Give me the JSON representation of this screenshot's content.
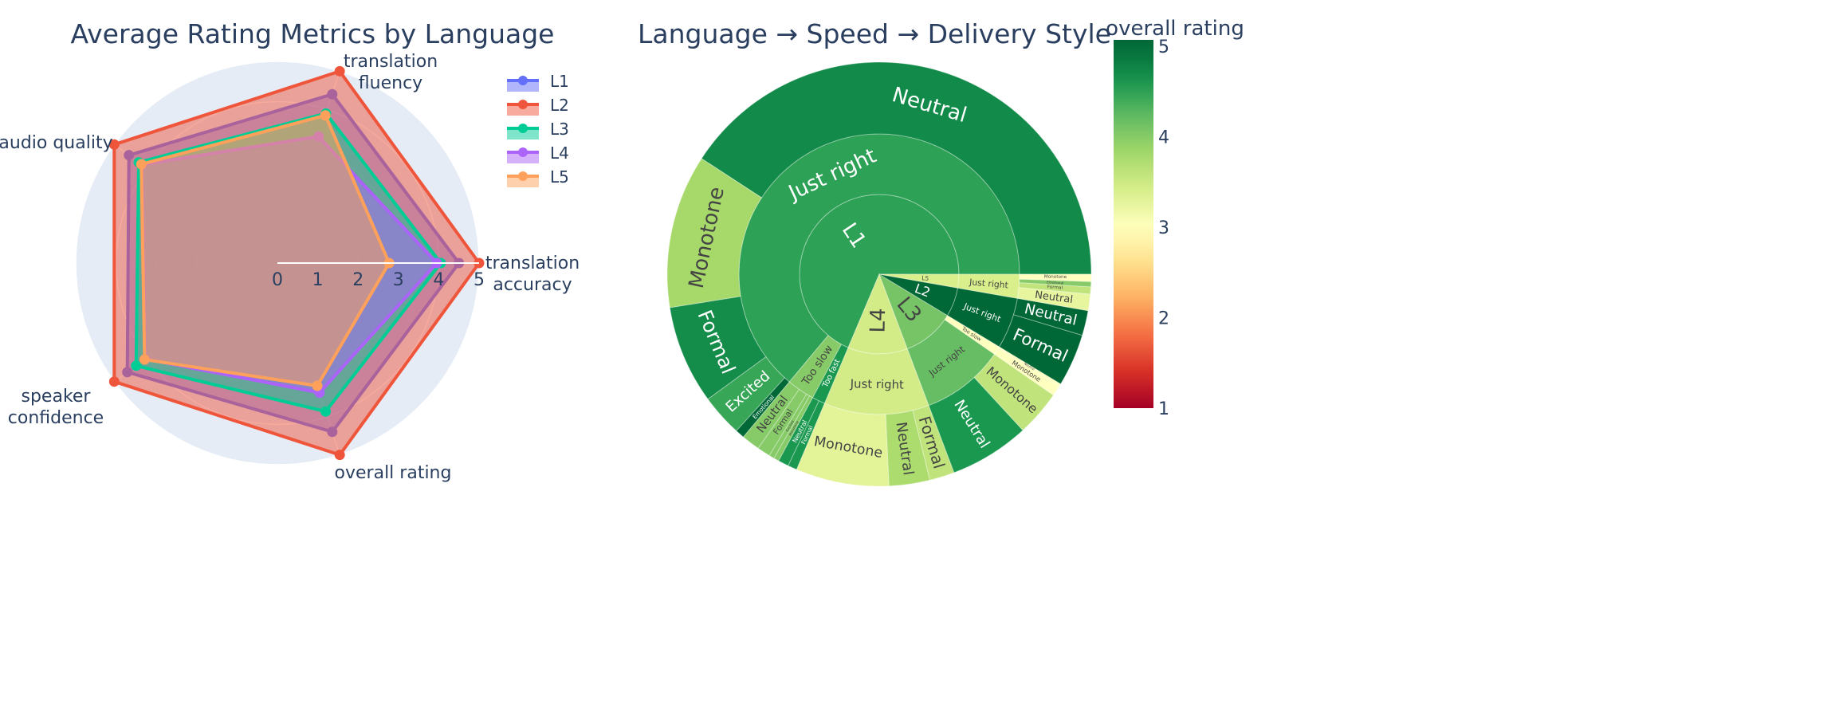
{
  "chart_data": [
    {
      "type": "radar",
      "title": "Average Rating Metrics by Language",
      "theta": [
        "translation accuracy",
        "translation fluency",
        "audio quality",
        "speaker confidence",
        "overall rating"
      ],
      "radial_range": [
        0,
        5
      ],
      "radial_ticks": [
        "0",
        "1",
        "2",
        "3",
        "4",
        "5"
      ],
      "legend_position": "top-right",
      "background": "#e5ecf6",
      "series": [
        {
          "name": "L1",
          "color": "#636efa",
          "values": [
            4.5,
            4.4,
            4.55,
            4.6,
            4.4
          ]
        },
        {
          "name": "L2",
          "color": "#ef553b",
          "values": [
            5.0,
            5.0,
            5.0,
            5.0,
            5.0
          ]
        },
        {
          "name": "L3",
          "color": "#00cc96",
          "values": [
            4.05,
            3.9,
            4.25,
            4.33,
            3.87
          ]
        },
        {
          "name": "L4",
          "color": "#ab63fa",
          "values": [
            3.95,
            3.3,
            4.15,
            4.05,
            3.38
          ]
        },
        {
          "name": "L5",
          "color": "#ffa15a",
          "values": [
            2.77,
            3.85,
            4.17,
            4.07,
            3.2
          ]
        }
      ]
    },
    {
      "type": "sunburst",
      "title": "Language → Speed → Delivery Style",
      "colorbar": {
        "title": "overall rating",
        "range": [
          1,
          5.07
        ],
        "ticks": [
          "1",
          "2",
          "3",
          "4",
          "5"
        ],
        "colorscale": "RdYlGn",
        "stops": [
          "#a50026",
          "#d73027",
          "#f46d43",
          "#fdae61",
          "#fee08b",
          "#ffffbf",
          "#d9ef8b",
          "#a6d96a",
          "#66bd63",
          "#1a9850",
          "#006837"
        ]
      },
      "nodes": [
        {
          "label": "L1",
          "rating": 4.5,
          "children": [
            {
              "label": "Just right",
              "rating": 4.5,
              "children": [
                {
                  "label": "Neutral",
                  "value": 40.8,
                  "rating": 4.72
                },
                {
                  "label": "Monotone",
                  "value": 11.7,
                  "rating": 3.8
                },
                {
                  "label": "Formal",
                  "value": 7.5,
                  "rating": 4.7
                },
                {
                  "label": "Excited",
                  "value": 3.2,
                  "rating": 4.45
                },
                {
                  "label": "Emotional",
                  "value": 0.7,
                  "rating": 5.0
                }
              ]
            },
            {
              "label": "Too slow",
              "rating": 4.0,
              "children": [
                {
                  "label": "Neutral",
                  "value": 1.4,
                  "rating": 4.0
                },
                {
                  "label": "Formal",
                  "value": 1.0,
                  "rating": 4.0
                },
                {
                  "label": "Excited",
                  "value": 0.4,
                  "rating": 4.0
                },
                {
                  "label": "Monotone",
                  "value": 0.4,
                  "rating": 4.0
                }
              ]
            },
            {
              "label": "Too fast",
              "rating": 4.6,
              "children": [
                {
                  "label": "Neutral",
                  "value": 0.8,
                  "rating": 4.6
                },
                {
                  "label": "Formal",
                  "value": 0.7,
                  "rating": 4.6
                }
              ]
            }
          ]
        },
        {
          "label": "L4",
          "rating": 3.45,
          "children": [
            {
              "label": "Just right",
              "rating": 3.45,
              "children": [
                {
                  "label": "Monotone",
                  "value": 7.1,
                  "rating": 3.3
                },
                {
                  "label": "Neutral",
                  "value": 3.1,
                  "rating": 3.75
                },
                {
                  "label": "Formal",
                  "value": 1.9,
                  "rating": 3.6
                }
              ]
            }
          ]
        },
        {
          "label": "L3",
          "rating": 4.1,
          "children": [
            {
              "label": "Just right",
              "rating": 4.2,
              "children": [
                {
                  "label": "Neutral",
                  "value": 6.1,
                  "rating": 4.6
                },
                {
                  "label": "Monotone",
                  "value": 3.5,
                  "rating": 3.6
                }
              ]
            },
            {
              "label": "Too slow",
              "rating": 3.0,
              "children": [
                {
                  "label": "Monotone",
                  "value": 0.8,
                  "rating": 3.0
                },
                {
                  "label": "Neutral",
                  "value": 0.2,
                  "rating": 3.0
                }
              ]
            }
          ]
        },
        {
          "label": "L2",
          "rating": 5.0,
          "children": [
            {
              "label": "Just right",
              "rating": 5.0,
              "children": [
                {
                  "label": "Formal",
                  "value": 4.0,
                  "rating": 5.0
                },
                {
                  "label": "Neutral",
                  "value": 1.9,
                  "rating": 5.0
                }
              ]
            }
          ]
        },
        {
          "label": "L5",
          "rating": 3.4,
          "children": [
            {
              "label": "Just right",
              "rating": 3.4,
              "children": [
                {
                  "label": "Neutral",
                  "value": 1.25,
                  "rating": 3.25
                },
                {
                  "label": "Formal",
                  "value": 0.55,
                  "rating": 3.6
                },
                {
                  "label": "Emotional",
                  "value": 0.4,
                  "rating": 4.0
                },
                {
                  "label": "Monotone",
                  "value": 0.55,
                  "rating": 3.0
                }
              ]
            }
          ]
        }
      ]
    }
  ]
}
